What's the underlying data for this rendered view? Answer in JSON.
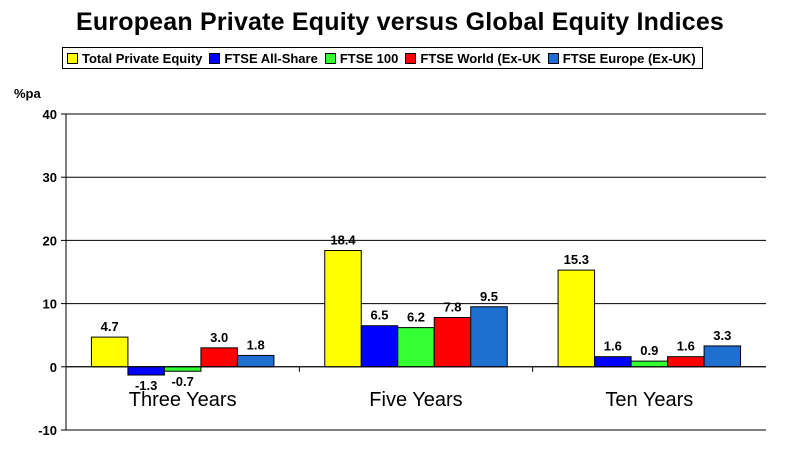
{
  "chart_data": {
    "type": "bar",
    "title": "European Private Equity versus Global Equity Indices",
    "ylabel": "%pa",
    "xlabel": "",
    "ylim": [
      -10,
      40
    ],
    "yticks": [
      -10,
      0,
      10,
      20,
      30,
      40
    ],
    "grid": true,
    "legend_position": "top",
    "categories": [
      "Three Years",
      "Five Years",
      "Ten Years"
    ],
    "series": [
      {
        "name": "Total Private Equity",
        "color": "#FFFF00",
        "values": [
          4.7,
          18.4,
          15.3
        ],
        "labels": [
          "4.7",
          "18.4",
          "15.3"
        ]
      },
      {
        "name": "FTSE All-Share",
        "color": "#0000FF",
        "values": [
          -1.3,
          6.5,
          1.6
        ],
        "labels": [
          "-1.3",
          "6.5",
          "1.6"
        ]
      },
      {
        "name": "FTSE 100",
        "color": "#33FF33",
        "values": [
          -0.7,
          6.2,
          0.9
        ],
        "labels": [
          "-0.7",
          "6.2",
          "0.9"
        ]
      },
      {
        "name": "FTSE World (Ex-UK",
        "color": "#FF0000",
        "values": [
          3.0,
          7.8,
          1.6
        ],
        "labels": [
          "3.0",
          "7.8",
          "1.6"
        ]
      },
      {
        "name": "FTSE Europe (Ex-UK)",
        "color": "#1F6FD1",
        "values": [
          1.8,
          9.5,
          3.3
        ],
        "labels": [
          "1.8",
          "9.5",
          "3.3"
        ]
      }
    ]
  }
}
